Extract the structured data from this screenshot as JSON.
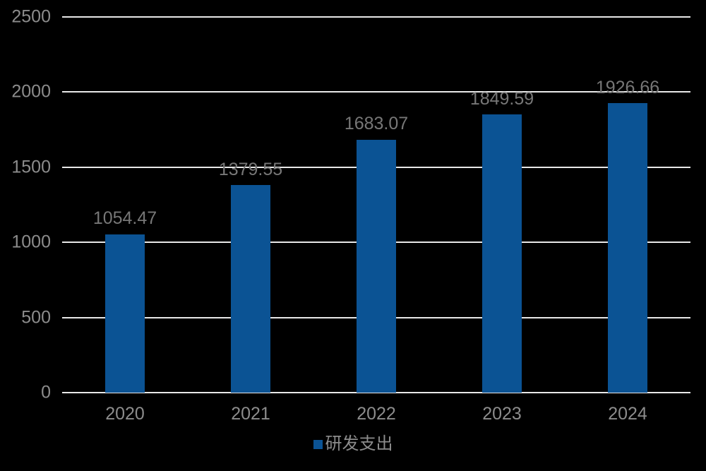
{
  "chart_data": {
    "type": "bar",
    "title": "",
    "xlabel": "",
    "ylabel": "",
    "categories": [
      "2020",
      "2021",
      "2022",
      "2023",
      "2024"
    ],
    "series": [
      {
        "name": "研发支出",
        "values": [
          1054.47,
          1379.55,
          1683.07,
          1849.59,
          1926.66
        ]
      }
    ],
    "value_labels": [
      "1054.47",
      "1379.55",
      "1683.07",
      "1849.59",
      "1926.66"
    ],
    "ylim": [
      0,
      2500
    ],
    "yticks": [
      0,
      500,
      1000,
      1500,
      2000,
      2500
    ],
    "grid": true,
    "legend_position": "bottom",
    "legend": {
      "label": "研发支出",
      "swatch_icon": "square-swatch-icon"
    },
    "colors": {
      "background": "#000000",
      "bar": "#0B5394",
      "gridline": "#E8E8E8",
      "tick_label": "#8C8C8C",
      "value_label": "#777777",
      "legend_text": "#8C8C8C"
    }
  }
}
